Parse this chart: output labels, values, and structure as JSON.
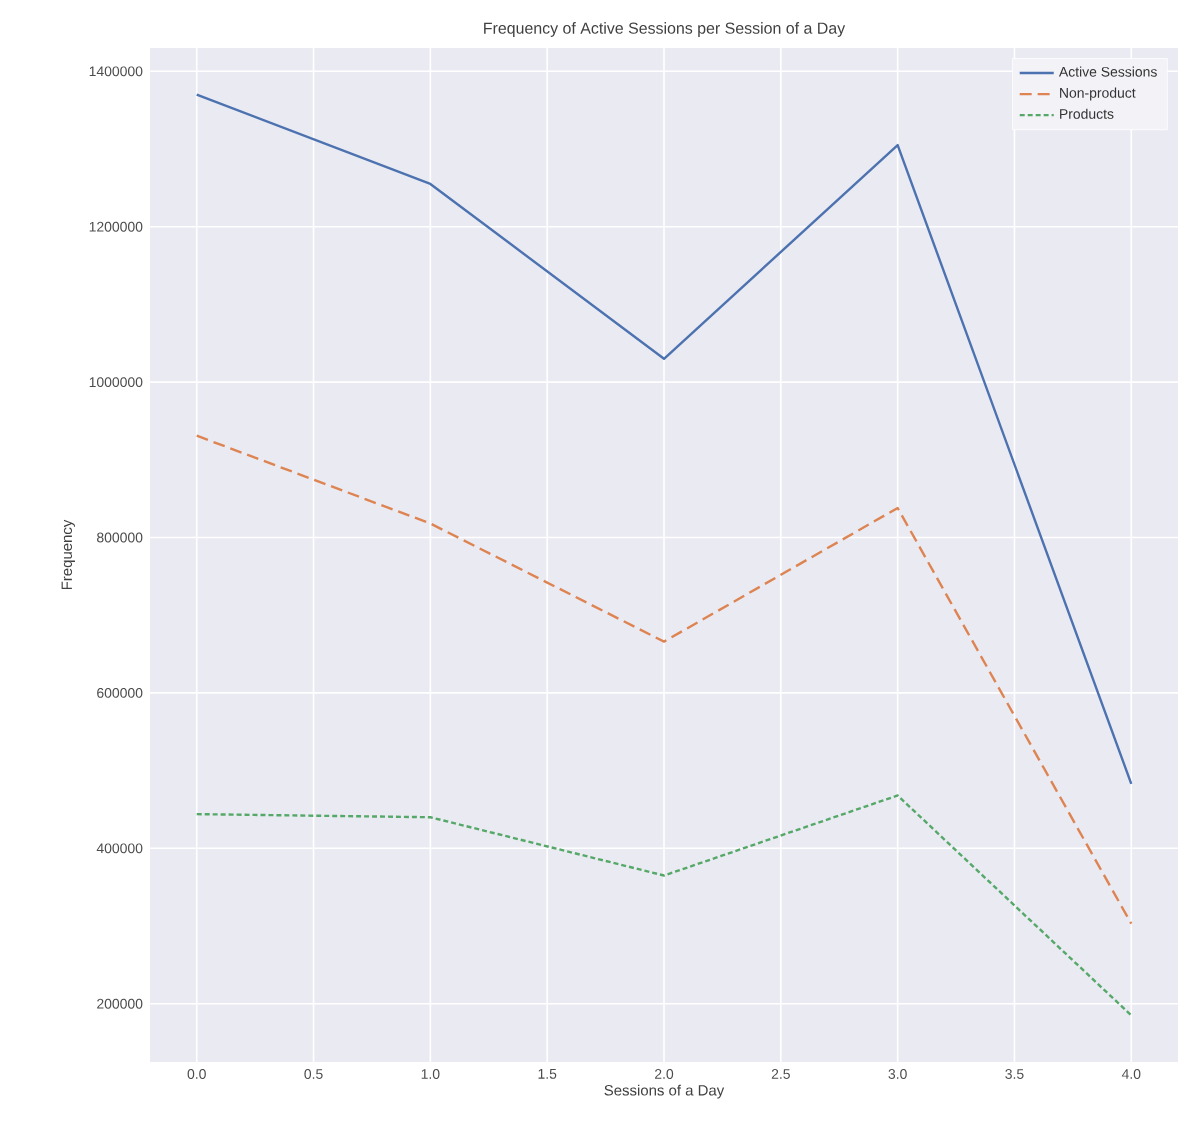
{
  "chart_data": {
    "type": "line",
    "title": "Frequency of Active Sessions per Session of a Day",
    "xlabel": "Sessions of a Day",
    "ylabel": "Frequency",
    "x": [
      0,
      1,
      2,
      3,
      4
    ],
    "series": [
      {
        "name": "Active Sessions",
        "color": "#4c72b0",
        "line_style": "solid",
        "values": [
          1370000,
          1255000,
          1030000,
          1305000,
          483000
        ]
      },
      {
        "name": "Non-product",
        "color": "#dd8452",
        "line_style": "dashed",
        "values": [
          931000,
          818000,
          666000,
          838000,
          303000
        ]
      },
      {
        "name": "Products",
        "color": "#55a868",
        "line_style": "dotted",
        "values": [
          444000,
          440000,
          365000,
          468000,
          185000
        ]
      }
    ],
    "xlim": [
      -0.2,
      4.2
    ],
    "ylim": [
      125000,
      1430000
    ],
    "xticks": [
      {
        "value": 0,
        "label": "0.0"
      },
      {
        "value": 0.5,
        "label": "0.5"
      },
      {
        "value": 1,
        "label": "1.0"
      },
      {
        "value": 1.5,
        "label": "1.5"
      },
      {
        "value": 2,
        "label": "2.0"
      },
      {
        "value": 2.5,
        "label": "2.5"
      },
      {
        "value": 3,
        "label": "3.0"
      },
      {
        "value": 3.5,
        "label": "3.5"
      },
      {
        "value": 4,
        "label": "4.0"
      }
    ],
    "yticks": [
      200000,
      400000,
      600000,
      800000,
      1000000,
      1200000,
      1400000
    ],
    "grid": true,
    "legend": "top right"
  }
}
